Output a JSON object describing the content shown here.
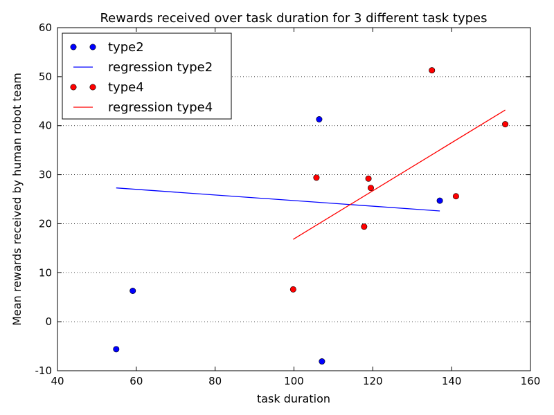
{
  "chart_data": {
    "type": "scatter",
    "title": "Rewards received over task duration for 3 different task types",
    "xlabel": "task duration",
    "ylabel": "Mean rewards received by human robot team",
    "xlim": [
      40,
      160
    ],
    "ylim": [
      -10,
      60
    ],
    "xticks": [
      40,
      60,
      80,
      100,
      120,
      140,
      160
    ],
    "yticks": [
      -10,
      0,
      10,
      20,
      30,
      40,
      50,
      60
    ],
    "grid": "y-dotted",
    "legend_position": "top-left",
    "series": [
      {
        "name": "type2",
        "kind": "points",
        "color": "#0000ff",
        "points": [
          [
            54.9,
            -5.6
          ],
          [
            59.1,
            6.3
          ],
          [
            106.4,
            41.3
          ],
          [
            107.1,
            -8.1
          ],
          [
            137.0,
            24.7
          ]
        ]
      },
      {
        "name": "regression type2",
        "kind": "line",
        "color": "#0000ff",
        "points": [
          [
            54.9,
            27.3
          ],
          [
            137.0,
            22.6
          ]
        ]
      },
      {
        "name": "type4",
        "kind": "points",
        "color": "#ff0000",
        "points": [
          [
            99.8,
            6.6
          ],
          [
            105.7,
            29.4
          ],
          [
            117.8,
            19.4
          ],
          [
            118.9,
            29.2
          ],
          [
            119.5,
            27.3
          ],
          [
            135.0,
            51.3
          ],
          [
            141.1,
            25.6
          ],
          [
            153.6,
            40.3
          ]
        ]
      },
      {
        "name": "regression type4",
        "kind": "line",
        "color": "#ff0000",
        "points": [
          [
            99.8,
            16.8
          ],
          [
            153.6,
            43.2
          ]
        ]
      }
    ]
  }
}
